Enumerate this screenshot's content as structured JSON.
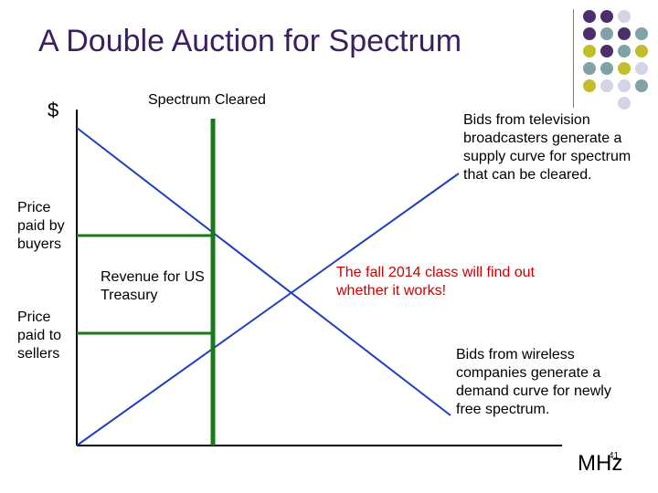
{
  "slide": {
    "title": "A Double Auction for Spectrum",
    "slide_number": "41"
  },
  "diagram": {
    "y_axis_label": "$",
    "x_axis_label": "MHz",
    "cleared_label": "Spectrum Cleared",
    "buyers_price_label": "Price paid by buyers",
    "sellers_price_label": "Price paid to sellers",
    "revenue_label": "Revenue for US Treasury",
    "supply_annotation": "Bids from television broadcasters generate a supply curve for spectrum that can be cleared.",
    "fall_annotation": "The fall 2014 class will find out whether it works!",
    "demand_annotation": "Bids from wireless companies generate a demand curve for newly free spectrum.",
    "colors": {
      "title": "#3b1f5e",
      "curve": "#1f3fbf",
      "cleared_line": "#1a7a1a",
      "annotation_red": "#cc0000",
      "deco_purple": "#4b2e6b",
      "deco_teal": "#7fa3a6",
      "deco_olive": "#c2bd2a",
      "deco_lavender": "#d4d4e6"
    }
  }
}
